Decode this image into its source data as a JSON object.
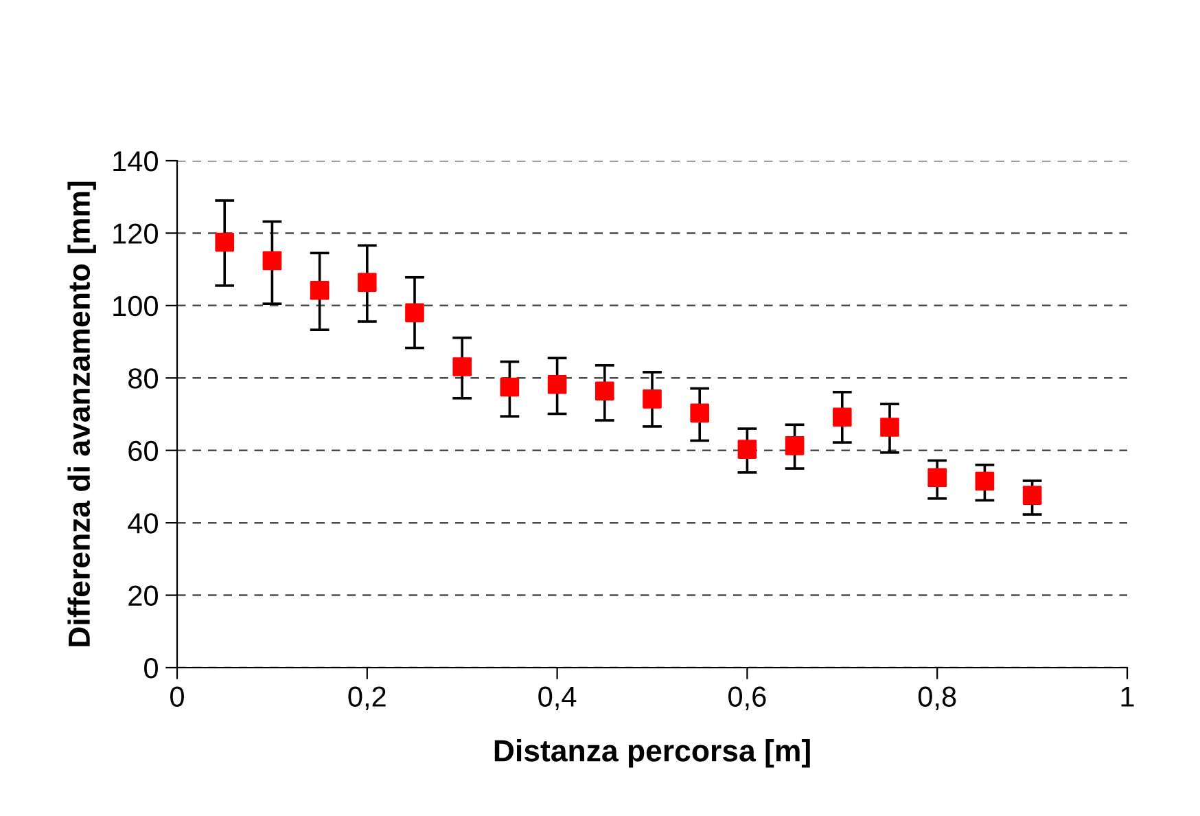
{
  "chart_data": {
    "type": "scatter",
    "xlabel": "Distanza percorsa [m]",
    "ylabel": "Differenza di avanzamento [mm]",
    "x": [
      0.05,
      0.1,
      0.15,
      0.2,
      0.25,
      0.3,
      0.35,
      0.4,
      0.45,
      0.5,
      0.55,
      0.6,
      0.65,
      0.7,
      0.75,
      0.8,
      0.85,
      0.9
    ],
    "series": [
      {
        "color": "#ff0000",
        "values": [
          117.5,
          112.4,
          104.2,
          106.4,
          98.0,
          83.1,
          77.5,
          78.2,
          76.4,
          74.2,
          70.3,
          60.3,
          61.3,
          69.2,
          66.4,
          52.5,
          51.5,
          47.6
        ],
        "errors": [
          [
            105.5,
            129
          ],
          [
            100.5,
            123.2
          ],
          [
            93.3,
            114.5
          ],
          [
            95.6,
            116.6
          ],
          [
            88.3,
            107.8
          ],
          [
            74.4,
            91.1
          ],
          [
            69.4,
            84.5
          ],
          [
            70.1,
            85.5
          ],
          [
            68.3,
            83.5
          ],
          [
            66.6,
            81.6
          ],
          [
            62.7,
            77.1
          ],
          [
            53.9,
            66.0
          ],
          [
            55.0,
            67.1
          ],
          [
            62.2,
            76.1
          ],
          [
            59.4,
            72.8
          ],
          [
            46.7,
            57.2
          ],
          [
            46.2,
            56.0
          ],
          [
            42.3,
            51.6
          ]
        ]
      }
    ],
    "xlim": [
      0,
      1
    ],
    "xticks": [
      0,
      {
        "value": 0.2,
        "label": "0,2"
      },
      {
        "value": 0.4,
        "label": "0,4"
      },
      {
        "value": 0.6,
        "label": "0,6"
      },
      {
        "value": 0.8,
        "label": "0,8"
      },
      1
    ],
    "ylim": [
      0,
      140
    ],
    "yticks": [
      0,
      20,
      40,
      60,
      80,
      100,
      120,
      140
    ],
    "grid": "y",
    "marker": "square",
    "legend": false
  }
}
